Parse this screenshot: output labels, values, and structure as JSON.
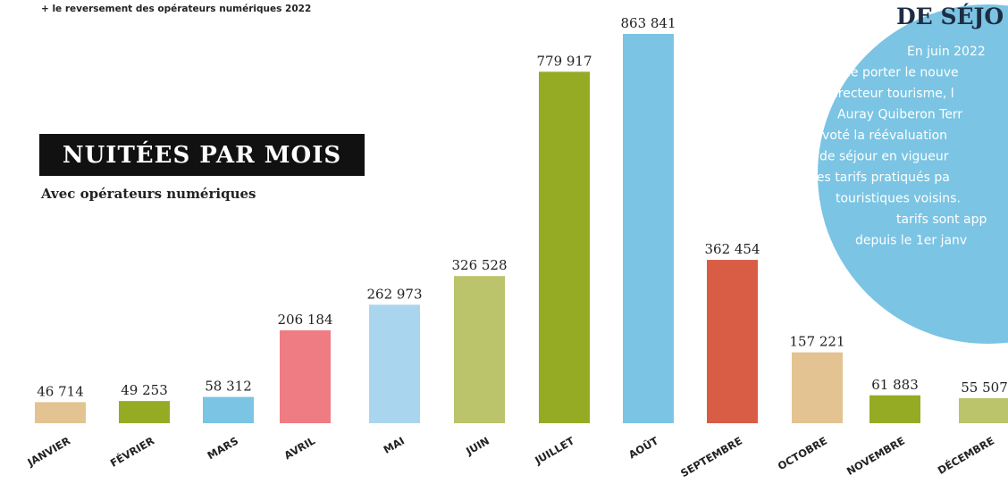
{
  "chart_data": {
    "type": "bar",
    "note": "+ le reversement des opérateurs numériques 2022",
    "title": "NUITÉES PAR MOIS",
    "subtitle": "Avec opérateurs numériques",
    "categories": [
      "JANVIER",
      "FÉVRIER",
      "MARS",
      "AVRIL",
      "MAI",
      "JUIN",
      "JUILLET",
      "AOÛT",
      "SEPTEMBRE",
      "OCTOBRE",
      "NOVEMBRE",
      "DÉCEMBRE"
    ],
    "values": [
      46714,
      49253,
      58312,
      206184,
      262973,
      326528,
      779917,
      863841,
      362454,
      157221,
      61883,
      55507
    ],
    "value_labels": [
      "46 714",
      "49 253",
      "58 312",
      "206 184",
      "262 973",
      "326 528",
      "779 917",
      "863 841",
      "362 454",
      "157 221",
      "61 883",
      "55 507"
    ],
    "colors": [
      "#e3c391",
      "#96ab24",
      "#7bc4e3",
      "#ef7c83",
      "#a9d6ee",
      "#bbc36b",
      "#96ab24",
      "#7bc4e3",
      "#d95c45",
      "#e3c391",
      "#96ab24",
      "#bbc36b"
    ],
    "sidebar": {
      "heading": "DE SÉJO",
      "lines": [
        "En juin 2022",
        "de porter le nouve",
        "directeur tourisme, l",
        "Auray Quiberon Terr",
        "a voté la réévaluation",
        "de séjour en vigueur",
        "des tarifs pratiqués pa",
        "touristiques voisins.",
        "tarifs sont app",
        "depuis le 1er janv"
      ]
    }
  }
}
